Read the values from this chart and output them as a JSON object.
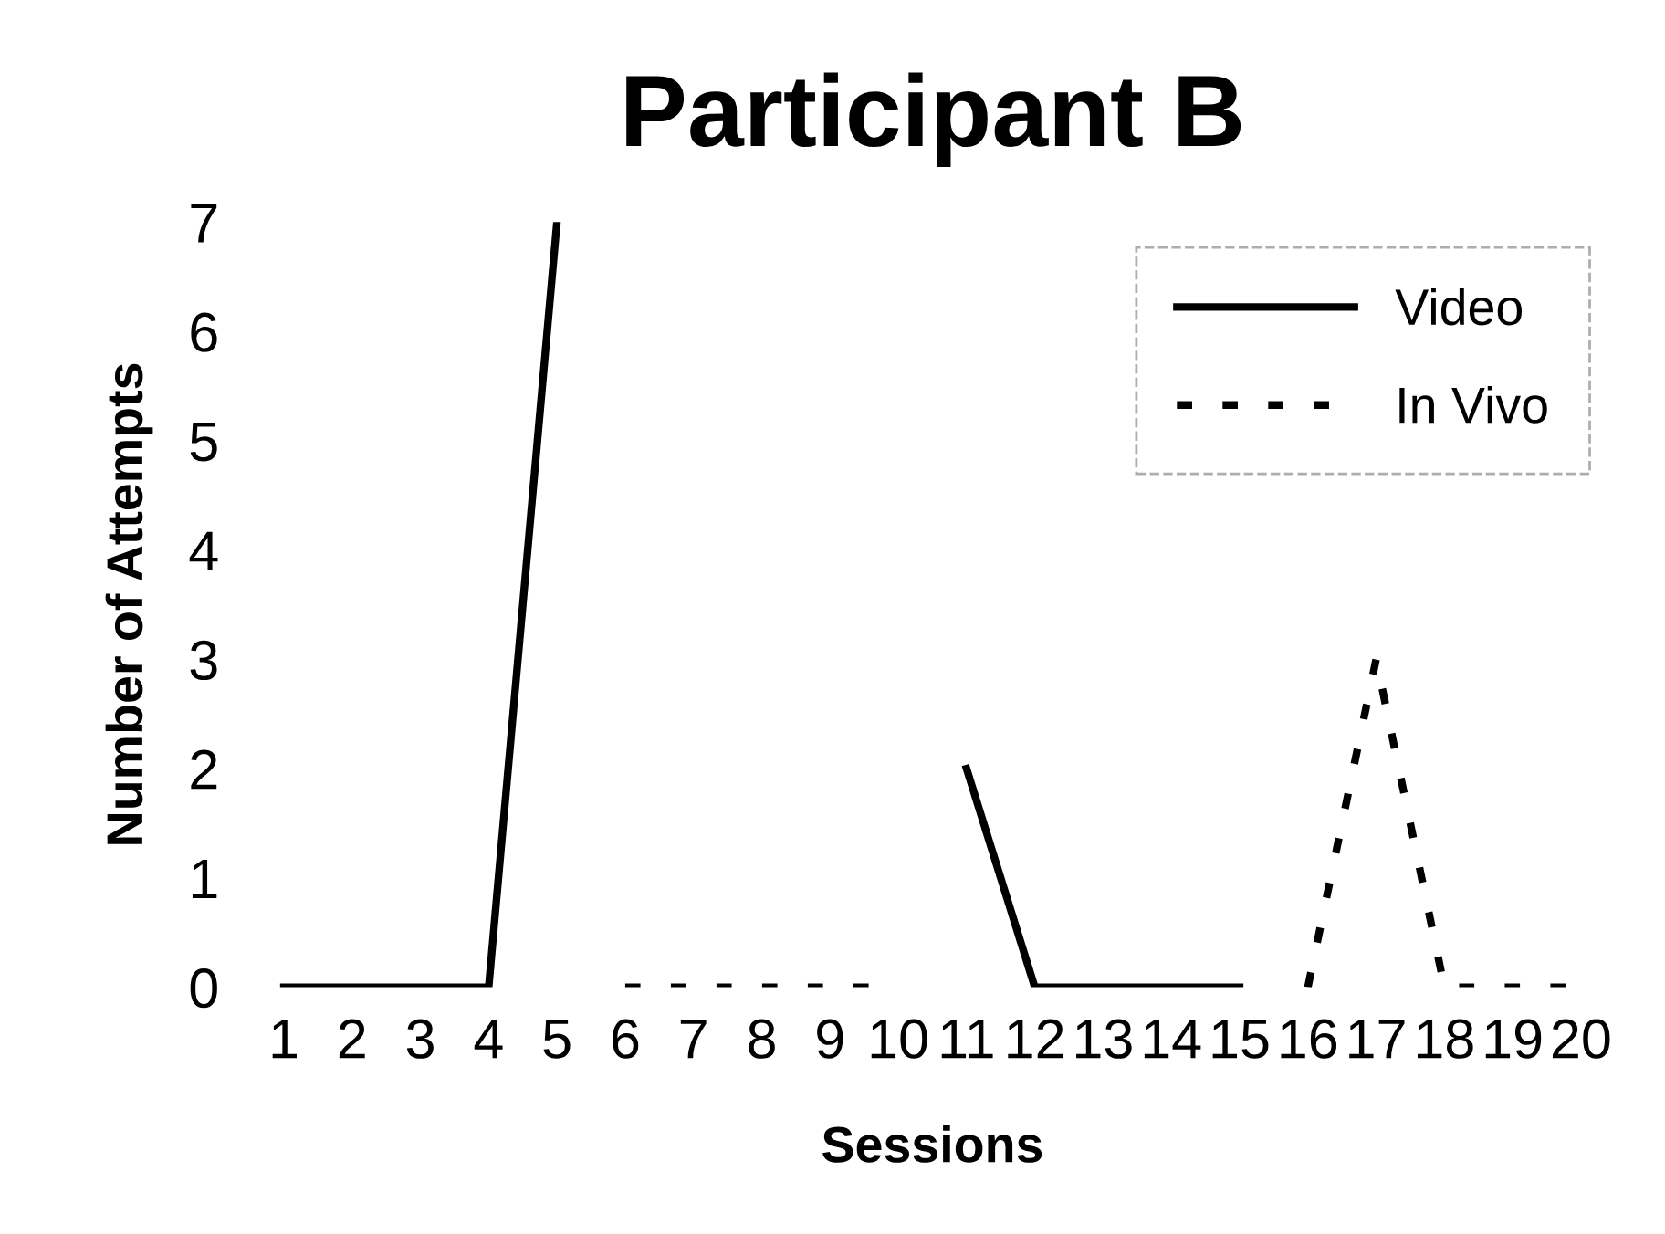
{
  "chart_data": {
    "type": "line",
    "title": "Participant B",
    "xlabel": "Sessions",
    "ylabel": "Number of Attempts",
    "categories": [
      "1",
      "2",
      "3",
      "4",
      "5",
      "6",
      "7",
      "8",
      "9",
      "10",
      "11",
      "12",
      "13",
      "14",
      "15",
      "16",
      "17",
      "18",
      "19",
      "20"
    ],
    "series": [
      {
        "name": "Video",
        "color": "#000000",
        "line_style": "solid",
        "values": [
          0,
          0,
          0,
          0,
          7,
          null,
          null,
          null,
          null,
          null,
          2,
          0,
          0,
          0,
          0,
          null,
          null,
          null,
          null,
          null
        ]
      },
      {
        "name": "In Vivo",
        "color": "#000000",
        "line_style": "dashed",
        "values": [
          null,
          null,
          null,
          null,
          null,
          0,
          0,
          0,
          0,
          0,
          null,
          null,
          null,
          null,
          null,
          0,
          3,
          0,
          0,
          0
        ]
      }
    ],
    "ylim": [
      0,
      7
    ],
    "yticks": [
      0,
      1,
      2,
      3,
      4,
      5,
      6,
      7
    ],
    "grid": false,
    "legend": "top right",
    "marker": "none"
  }
}
